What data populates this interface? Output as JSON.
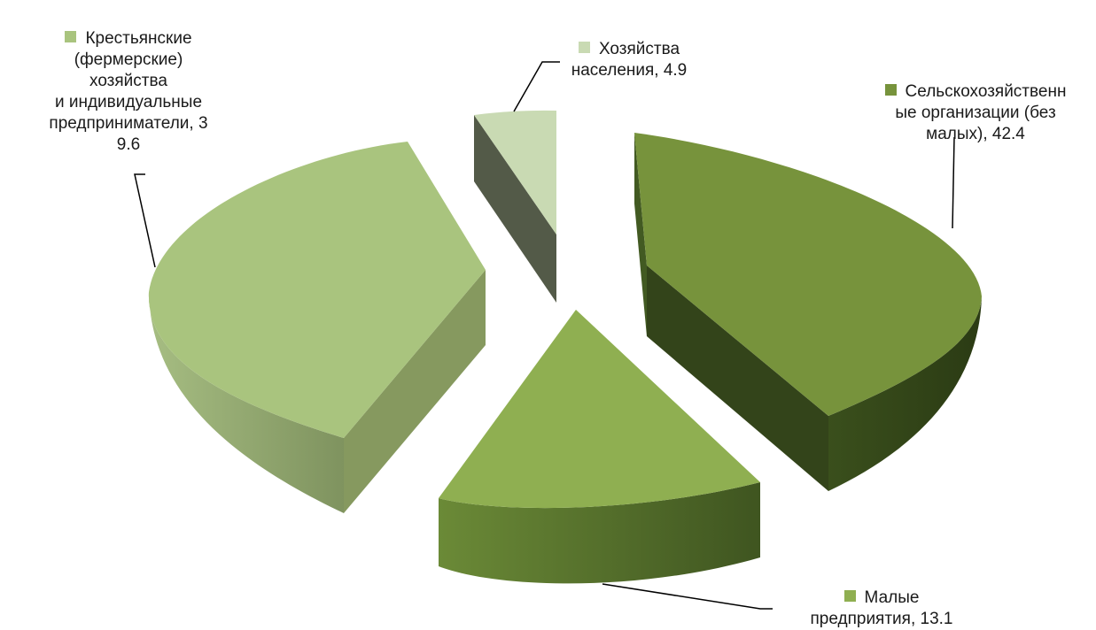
{
  "chart_data": {
    "type": "pie",
    "variant": "3d-exploded",
    "title": "",
    "series": [
      {
        "name": "",
        "categories": [
          "Сельскохозяйственные организации (без малых)",
          "Малые предприятия",
          "Крестьянские (фермерские) хозяйства и индивидуальные предприниматели",
          "Хозяйства населения"
        ],
        "values": [
          42.4,
          13.1,
          39.6,
          4.9
        ]
      }
    ],
    "slices": [
      {
        "id": "agri-orgs",
        "label_lines": "Сельскохозяйственн\nые организации (без\nмалых), 42.4",
        "value": 42.4,
        "color": "#77933C"
      },
      {
        "id": "small-enterprises",
        "label_lines": "Малые\nпредприятия, 13.1",
        "value": 13.1,
        "color": "#8FAF51"
      },
      {
        "id": "farms",
        "label_lines": "Крестьянские\n(фермерские)\nхозяйства\nи индивидуальные\nпредприниматели, 3\n9.6",
        "value": 39.6,
        "color": "#A9C47E"
      },
      {
        "id": "households",
        "label_lines": "Хозяйства\nнаселения, 4.9",
        "value": 4.9,
        "color": "#C9DAB3"
      }
    ],
    "legend": "inline-with-labels"
  }
}
